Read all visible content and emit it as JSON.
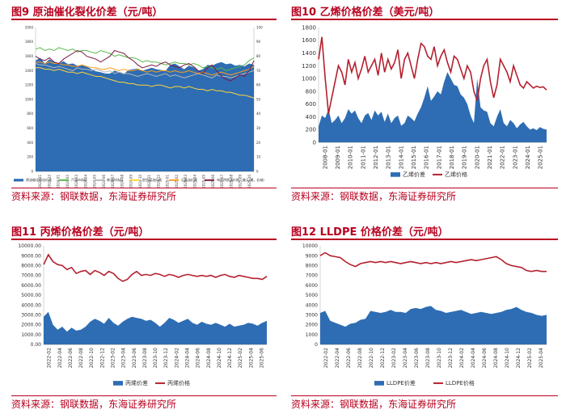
{
  "colors": {
    "title": "#b8001f",
    "area": "#2e6db3",
    "line": "#b5202e"
  },
  "chart_data": [
    {
      "id": "fig9",
      "type": "line",
      "title": "图9  原油催化裂化价差（元/吨）",
      "source": "资料来源：钢联数据，东海证券研究所",
      "x_tick_labels": [
        "2023-11",
        "2023-12",
        "2024-01",
        "2024-02",
        "2024-03",
        "2024-04",
        "2024-05",
        "2024-06",
        "2024-07",
        "2024-08",
        "2024-09",
        "2024-10",
        "2024-11",
        "2024-12",
        "2025-01",
        "2025-02",
        "2025-03",
        "2025-04",
        "2025-05",
        "2025-06",
        "2025-07",
        "2025-08",
        "2025-09",
        "2025-10"
      ],
      "ylim_left": [
        0,
        2000
      ],
      "y_ticks_left": [
        "0",
        "200",
        "400",
        "600",
        "800",
        "1000",
        "1200",
        "1400",
        "1600",
        "1800",
        "2000"
      ],
      "ylim_right": [
        0,
        100
      ],
      "y_ticks_right": [
        "0",
        "10",
        "20",
        "30",
        "40",
        "50",
        "60",
        "70",
        "80",
        "90",
        "100"
      ],
      "legend_position": "bottom",
      "series": [
        {
          "name": "原油催化裂化价差",
          "type": "area",
          "axis": "left",
          "color": "#2e6db3",
          "values": [
            1540,
            1580,
            1500,
            1560,
            1520,
            1500,
            1530,
            1490,
            1500,
            1470,
            1480,
            1460,
            1420,
            1390,
            1380,
            1360,
            1360,
            1400,
            1380,
            1350,
            1410,
            1420,
            1430,
            1400,
            1420,
            1440,
            1420,
            1410,
            1400,
            1480,
            1500,
            1460,
            1420,
            1470,
            1450,
            1400,
            1420,
            1480,
            1470,
            1500,
            1520,
            1490,
            1500,
            1470,
            1480,
            1460,
            1500,
            1480
          ]
        },
        {
          "name": "汽油市场价",
          "axis": "right",
          "color": "#58b847",
          "values": [
            85,
            86,
            84,
            85,
            84,
            86,
            85,
            84,
            85,
            83,
            84,
            84,
            83,
            82,
            84,
            83,
            82,
            80,
            81,
            80,
            79,
            79,
            78,
            76,
            77,
            76,
            76,
            75,
            74,
            75,
            76,
            75,
            75,
            74,
            75,
            74,
            72,
            73,
            72,
            71,
            72,
            70,
            71,
            72,
            73,
            74,
            77,
            79
          ]
        },
        {
          "name": "柴油市场价",
          "axis": "right",
          "color": "#b7b7b7",
          "values": [
            75,
            74,
            74,
            73,
            72,
            73,
            72,
            71,
            70,
            72,
            71,
            71,
            70,
            71,
            70,
            69,
            70,
            68,
            69,
            68,
            68,
            67,
            66,
            67,
            68,
            67,
            66,
            67,
            68,
            66,
            67,
            66,
            65,
            66,
            67,
            68,
            67,
            66,
            65,
            67,
            66,
            66,
            65,
            66,
            67,
            68,
            69,
            70
          ]
        },
        {
          "name": "航空煤油价格",
          "axis": "right",
          "color": "#ffd43b",
          "values": [
            72,
            72,
            71,
            71,
            70,
            71,
            70,
            69,
            69,
            68,
            69,
            68,
            67,
            66,
            66,
            65,
            64,
            63,
            62,
            62,
            61,
            61,
            60,
            60,
            60,
            59,
            60,
            60,
            59,
            58,
            59,
            59,
            58,
            59,
            58,
            57,
            57,
            56,
            57,
            56,
            56,
            55,
            55,
            54,
            53,
            53,
            52,
            51
          ]
        },
        {
          "name": "石脑油价格",
          "axis": "right",
          "color": "#ff9e1b",
          "values": [
            76,
            76,
            75,
            76,
            75,
            75,
            74,
            74,
            73,
            73,
            74,
            73,
            72,
            72,
            71,
            71,
            72,
            71,
            70,
            71,
            70,
            70,
            71,
            70,
            69,
            70,
            69,
            70,
            70,
            69,
            70,
            69,
            69,
            70,
            69,
            68,
            69,
            68,
            67,
            68,
            69,
            68,
            67,
            68,
            69,
            70,
            71,
            73
          ]
        },
        {
          "name": "布伦特原油价格（美元/桶，右轴）",
          "axis": "right",
          "color": "#7a1a46",
          "values": [
            80,
            78,
            77,
            79,
            76,
            75,
            78,
            80,
            82,
            84,
            83,
            80,
            79,
            78,
            76,
            78,
            80,
            84,
            83,
            82,
            79,
            77,
            74,
            72,
            73,
            74,
            73,
            75,
            76,
            74,
            73,
            72,
            74,
            75,
            73,
            70,
            68,
            72,
            74,
            70,
            66,
            64,
            63,
            65,
            67,
            66,
            70,
            77
          ]
        }
      ]
    },
    {
      "id": "fig10",
      "type": "area",
      "title": "图10  乙烯价格价差（美元/吨）",
      "source": "资料来源：钢联数据，东海证券研究所",
      "x_tick_labels": [
        "2008-01",
        "2009-01",
        "2010-01",
        "2011-01",
        "2012-01",
        "2013-01",
        "2014-01",
        "2015-01",
        "2016-01",
        "2017-01",
        "2018-01",
        "2019-01",
        "2020-01",
        "2021-01",
        "2022-01",
        "2023-01",
        "2024-01",
        "2025-01"
      ],
      "ylim": [
        0,
        1800
      ],
      "y_ticks": [
        "0",
        "200",
        "400",
        "600",
        "800",
        "1000",
        "1200",
        "1400",
        "1600",
        "1800"
      ],
      "legend_position": "bottom",
      "series": [
        {
          "name": "乙烯价差",
          "type": "area",
          "color": "#2e6db3",
          "values": [
            250,
            420,
            380,
            520,
            300,
            350,
            420,
            300,
            380,
            520,
            450,
            500,
            380,
            300,
            420,
            460,
            350,
            500,
            420,
            480,
            320,
            450,
            300,
            380,
            420,
            260,
            300,
            420,
            380,
            330,
            450,
            550,
            700,
            880,
            650,
            720,
            800,
            750,
            950,
            1100,
            1000,
            900,
            880,
            750,
            700,
            600,
            420,
            300,
            1000,
            550,
            500,
            480,
            300,
            250,
            400,
            520,
            300,
            250,
            350,
            300,
            220,
            280,
            320,
            250,
            200,
            220,
            190,
            240,
            210,
            200
          ]
        },
        {
          "name": "乙烯价格",
          "type": "line",
          "color": "#b5202e",
          "values": [
            1300,
            1650,
            1000,
            450,
            700,
            950,
            1200,
            1100,
            900,
            1300,
            1100,
            1250,
            1000,
            1150,
            1350,
            1100,
            1200,
            1300,
            1050,
            1400,
            1100,
            1300,
            1150,
            1250,
            1450,
            1000,
            1300,
            1400,
            1200,
            1000,
            1300,
            1550,
            1500,
            1350,
            1300,
            1500,
            1200,
            1350,
            1450,
            1250,
            1100,
            1350,
            1300,
            1150,
            1000,
            1200,
            1100,
            800,
            650,
            1000,
            1200,
            1300,
            950,
            700,
            900,
            1300,
            1200,
            1100,
            950,
            1200,
            1050,
            900,
            850,
            950,
            900,
            850,
            880,
            860,
            870,
            820
          ]
        }
      ]
    },
    {
      "id": "fig11",
      "type": "area",
      "title": "图11  丙烯价格价差（元/吨）",
      "source": "资料来源：钢联数据，东海证券研究所",
      "x_tick_labels": [
        "2022-02",
        "2022-04",
        "2022-06",
        "2022-08",
        "2022-10",
        "2022-12",
        "2023-02",
        "2023-04",
        "2023-06",
        "2023-08",
        "2023-10",
        "2023-12",
        "2024-02",
        "2024-04",
        "2024-06",
        "2024-08",
        "2024-10",
        "2024-12",
        "2025-02",
        "2025-04",
        "2025-06"
      ],
      "ylim": [
        0,
        10000
      ],
      "y_ticks": [
        "0.00",
        "1000.00",
        "2000.00",
        "3000.00",
        "4000.00",
        "5000.00",
        "6000.00",
        "7000.00",
        "8000.00",
        "9000.00",
        "10000.00"
      ],
      "legend_position": "bottom",
      "series": [
        {
          "name": "丙烯价差",
          "type": "area",
          "color": "#2e6db3",
          "values": [
            2800,
            3300,
            2000,
            1500,
            1800,
            1300,
            1700,
            1400,
            1500,
            1800,
            2300,
            2600,
            2400,
            2100,
            2700,
            2200,
            1900,
            2300,
            2600,
            2800,
            2700,
            2600,
            2400,
            2500,
            2200,
            1800,
            2200,
            2700,
            2500,
            2200,
            2400,
            2600,
            2200,
            2000,
            2300,
            2100,
            2000,
            2200,
            2000,
            1800,
            2100,
            1800,
            1900,
            2000,
            2200,
            2100,
            1900,
            2200,
            2400
          ]
        },
        {
          "name": "丙烯价格",
          "type": "line",
          "color": "#b5202e",
          "values": [
            8100,
            9100,
            8400,
            8100,
            8000,
            7600,
            7800,
            7200,
            7400,
            7500,
            7100,
            7500,
            7300,
            7000,
            7400,
            7200,
            6700,
            6400,
            6600,
            7100,
            7400,
            7000,
            7100,
            7000,
            7200,
            7100,
            6900,
            7100,
            7000,
            6800,
            7000,
            7100,
            7000,
            6900,
            7000,
            6900,
            7000,
            6800,
            7000,
            7100,
            6900,
            6800,
            7000,
            6900,
            6800,
            6700,
            6700,
            6600,
            6900
          ]
        }
      ]
    },
    {
      "id": "fig12",
      "type": "area",
      "title": "图12  LLDPE 价格价差（元/吨）",
      "source": "资料来源：钢联数据，东海证券研究所",
      "x_tick_labels": [
        "2022-02",
        "2022-04",
        "2022-06",
        "2022-08",
        "2022-10",
        "2022-12",
        "2023-02",
        "2023-04",
        "2023-06",
        "2023-08",
        "2023-10",
        "2023-12",
        "2024-02",
        "2024-04",
        "2024-06",
        "2024-08",
        "2024-10",
        "2024-12",
        "2025-02",
        "2025-04"
      ],
      "ylim": [
        0,
        10000
      ],
      "y_ticks": [
        "0",
        "1000",
        "2000",
        "3000",
        "4000",
        "5000",
        "6000",
        "7000",
        "8000",
        "9000",
        "10000"
      ],
      "legend_position": "bottom",
      "series": [
        {
          "name": "LLDPE价差",
          "type": "area",
          "color": "#2e6db3",
          "values": [
            3200,
            3400,
            2400,
            2200,
            2000,
            1800,
            2100,
            2200,
            2500,
            2600,
            3400,
            3300,
            3200,
            3300,
            3500,
            3300,
            3300,
            3200,
            3600,
            3700,
            3600,
            3800,
            3900,
            3500,
            3400,
            3200,
            3300,
            3400,
            3500,
            3300,
            3100,
            3200,
            3300,
            3200,
            3100,
            3200,
            3300,
            3500,
            3600,
            3800,
            3500,
            3300,
            3200,
            3000,
            2900,
            3000
          ]
        },
        {
          "name": "LLDPE价格",
          "type": "line",
          "color": "#b5202e",
          "values": [
            9000,
            9300,
            9000,
            8900,
            8800,
            8400,
            8100,
            7900,
            8200,
            8300,
            8400,
            8300,
            8400,
            8300,
            8400,
            8300,
            8200,
            8300,
            8400,
            8300,
            8200,
            8300,
            8200,
            8300,
            8200,
            8300,
            8400,
            8300,
            8400,
            8500,
            8600,
            8500,
            8600,
            8700,
            8800,
            8900,
            8600,
            8200,
            8000,
            7900,
            7800,
            7500,
            7400,
            7500,
            7400,
            7400
          ]
        }
      ]
    }
  ]
}
